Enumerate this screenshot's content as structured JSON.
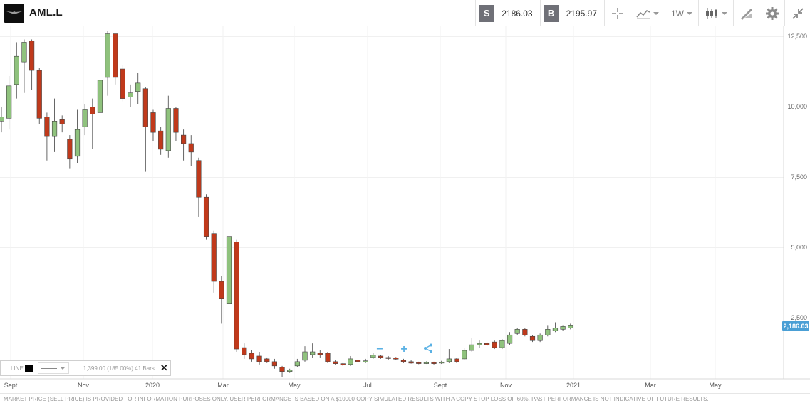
{
  "header": {
    "symbol": "AML.L",
    "sell_badge": "S",
    "sell_price": "2186.03",
    "buy_badge": "B",
    "buy_price": "2195.97",
    "timeframe": "1W"
  },
  "icons": {
    "logo": "aston-martin-wings-logo",
    "crosshair": "crosshair-icon",
    "line_chart": "line-chart-icon",
    "candles": "candlestick-icon",
    "draw": "pencil-ruler-icon",
    "settings": "gear-icon",
    "fullscreen": "collapse-arrows-icon"
  },
  "colors": {
    "up": "#8fc27d",
    "down": "#c0391b",
    "price_tag": "#4a9fd5"
  },
  "chart_data": {
    "type": "candlestick",
    "ylim": [
      0,
      12600
    ],
    "y_ticks": [
      "12,500",
      "10,000",
      "7,500",
      "5,000",
      "2,500"
    ],
    "x_ticks": [
      "Sept",
      "Nov",
      "2020",
      "Mar",
      "May",
      "Jul",
      "Sept",
      "Nov",
      "2021",
      "Mar",
      "May"
    ],
    "last_price_label": "2,186.03",
    "candles": [
      {
        "o": 9500,
        "c": 9650,
        "h": 10000,
        "l": 9100
      },
      {
        "o": 9600,
        "c": 10750,
        "h": 11100,
        "l": 9200
      },
      {
        "o": 10800,
        "c": 11800,
        "h": 12300,
        "l": 10300
      },
      {
        "o": 11600,
        "c": 12300,
        "h": 12400,
        "l": 10500
      },
      {
        "o": 12350,
        "c": 11300,
        "h": 12400,
        "l": 10600
      },
      {
        "o": 11300,
        "c": 9600,
        "h": 11400,
        "l": 9400
      },
      {
        "o": 9650,
        "c": 8950,
        "h": 9800,
        "l": 8100
      },
      {
        "o": 8950,
        "c": 9500,
        "h": 10300,
        "l": 8400
      },
      {
        "o": 9550,
        "c": 9400,
        "h": 9700,
        "l": 9100
      },
      {
        "o": 8850,
        "c": 8150,
        "h": 9000,
        "l": 7800
      },
      {
        "o": 8250,
        "c": 9200,
        "h": 9900,
        "l": 8000
      },
      {
        "o": 9300,
        "c": 9900,
        "h": 10100,
        "l": 9000
      },
      {
        "o": 10000,
        "c": 9750,
        "h": 10300,
        "l": 8500
      },
      {
        "o": 9800,
        "c": 10950,
        "h": 11500,
        "l": 9600
      },
      {
        "o": 11050,
        "c": 12600,
        "h": 12700,
        "l": 10400
      },
      {
        "o": 12600,
        "c": 11050,
        "h": 12600,
        "l": 10800
      },
      {
        "o": 11350,
        "c": 10300,
        "h": 11500,
        "l": 10200
      },
      {
        "o": 10350,
        "c": 10500,
        "h": 10800,
        "l": 10000
      },
      {
        "o": 10550,
        "c": 10850,
        "h": 11200,
        "l": 10100
      },
      {
        "o": 10650,
        "c": 9300,
        "h": 10700,
        "l": 7700
      },
      {
        "o": 9800,
        "c": 9100,
        "h": 9900,
        "l": 8800
      },
      {
        "o": 9150,
        "c": 8500,
        "h": 9300,
        "l": 8300
      },
      {
        "o": 8450,
        "c": 9950,
        "h": 10400,
        "l": 8200
      },
      {
        "o": 9950,
        "c": 9100,
        "h": 10000,
        "l": 8800
      },
      {
        "o": 9000,
        "c": 8700,
        "h": 9200,
        "l": 8100
      },
      {
        "o": 8700,
        "c": 8400,
        "h": 9000,
        "l": 7900
      },
      {
        "o": 8100,
        "c": 6800,
        "h": 8200,
        "l": 6100
      },
      {
        "o": 6800,
        "c": 5400,
        "h": 6900,
        "l": 5300
      },
      {
        "o": 5500,
        "c": 3800,
        "h": 5600,
        "l": 3400
      },
      {
        "o": 3800,
        "c": 3200,
        "h": 4000,
        "l": 2300
      },
      {
        "o": 3000,
        "c": 5400,
        "h": 5700,
        "l": 2900
      },
      {
        "o": 5200,
        "c": 1400,
        "h": 5300,
        "l": 1300
      },
      {
        "o": 1450,
        "c": 1200,
        "h": 1600,
        "l": 1050
      },
      {
        "o": 1250,
        "c": 1050,
        "h": 1350,
        "l": 950
      },
      {
        "o": 1150,
        "c": 950,
        "h": 1300,
        "l": 850
      },
      {
        "o": 1050,
        "c": 950,
        "h": 1100,
        "l": 900
      },
      {
        "o": 950,
        "c": 800,
        "h": 1050,
        "l": 700
      },
      {
        "o": 750,
        "c": 600,
        "h": 800,
        "l": 400
      },
      {
        "o": 600,
        "c": 650,
        "h": 700,
        "l": 550
      },
      {
        "o": 800,
        "c": 950,
        "h": 1050,
        "l": 750
      },
      {
        "o": 1000,
        "c": 1300,
        "h": 1500,
        "l": 950
      },
      {
        "o": 1200,
        "c": 1300,
        "h": 1600,
        "l": 1100
      },
      {
        "o": 1250,
        "c": 1200,
        "h": 1350,
        "l": 1100
      },
      {
        "o": 1250,
        "c": 950,
        "h": 1300,
        "l": 900
      },
      {
        "o": 950,
        "c": 880,
        "h": 1000,
        "l": 850
      },
      {
        "o": 880,
        "c": 850,
        "h": 900,
        "l": 800
      },
      {
        "o": 850,
        "c": 1050,
        "h": 1150,
        "l": 800
      },
      {
        "o": 1000,
        "c": 950,
        "h": 1050,
        "l": 900
      },
      {
        "o": 950,
        "c": 980,
        "h": 1050,
        "l": 900
      },
      {
        "o": 1100,
        "c": 1180,
        "h": 1250,
        "l": 1050
      },
      {
        "o": 1150,
        "c": 1100,
        "h": 1200,
        "l": 1050
      },
      {
        "o": 1100,
        "c": 1080,
        "h": 1150,
        "l": 1000
      },
      {
        "o": 1080,
        "c": 1050,
        "h": 1120,
        "l": 1000
      },
      {
        "o": 1000,
        "c": 950,
        "h": 1050,
        "l": 900
      },
      {
        "o": 950,
        "c": 900,
        "h": 1000,
        "l": 880
      },
      {
        "o": 920,
        "c": 900,
        "h": 950,
        "l": 860
      },
      {
        "o": 900,
        "c": 920,
        "h": 960,
        "l": 870
      },
      {
        "o": 920,
        "c": 880,
        "h": 950,
        "l": 850
      },
      {
        "o": 900,
        "c": 940,
        "h": 980,
        "l": 870
      },
      {
        "o": 950,
        "c": 1050,
        "h": 1400,
        "l": 900
      },
      {
        "o": 1050,
        "c": 950,
        "h": 1100,
        "l": 900
      },
      {
        "o": 1050,
        "c": 1350,
        "h": 1450,
        "l": 1000
      },
      {
        "o": 1350,
        "c": 1550,
        "h": 1800,
        "l": 1300
      },
      {
        "o": 1550,
        "c": 1600,
        "h": 1700,
        "l": 1450
      },
      {
        "o": 1600,
        "c": 1550,
        "h": 1650,
        "l": 1500
      },
      {
        "o": 1650,
        "c": 1450,
        "h": 1700,
        "l": 1400
      },
      {
        "o": 1450,
        "c": 1700,
        "h": 1750,
        "l": 1400
      },
      {
        "o": 1600,
        "c": 1900,
        "h": 2000,
        "l": 1550
      },
      {
        "o": 1950,
        "c": 2100,
        "h": 2150,
        "l": 1900
      },
      {
        "o": 2100,
        "c": 1900,
        "h": 2150,
        "l": 1850
      },
      {
        "o": 1850,
        "c": 1700,
        "h": 1900,
        "l": 1650
      },
      {
        "o": 1700,
        "c": 1900,
        "h": 1950,
        "l": 1650
      },
      {
        "o": 1900,
        "c": 2100,
        "h": 2250,
        "l": 1850
      },
      {
        "o": 2050,
        "c": 2150,
        "h": 2350,
        "l": 2000
      },
      {
        "o": 2100,
        "c": 2200,
        "h": 2250,
        "l": 2050
      },
      {
        "o": 2150,
        "c": 2250,
        "h": 2300,
        "l": 2100
      }
    ]
  },
  "indicator": {
    "label": "LINE",
    "info": "1,399.00 (185.00%) 41 Bars",
    "close": "✕"
  },
  "zoom": {
    "out": "−",
    "in": "+"
  },
  "footer": {
    "disclaimer": "MARKET PRICE (SELL PRICE) IS PROVIDED FOR INFORMATION PURPOSES ONLY. USER PERFORMANCE IS BASED ON A $10000 COPY SIMULATED RESULTS WITH A COPY STOP LOSS OF 60%. PAST PERFORMANCE IS NOT INDICATIVE OF FUTURE RESULTS."
  }
}
